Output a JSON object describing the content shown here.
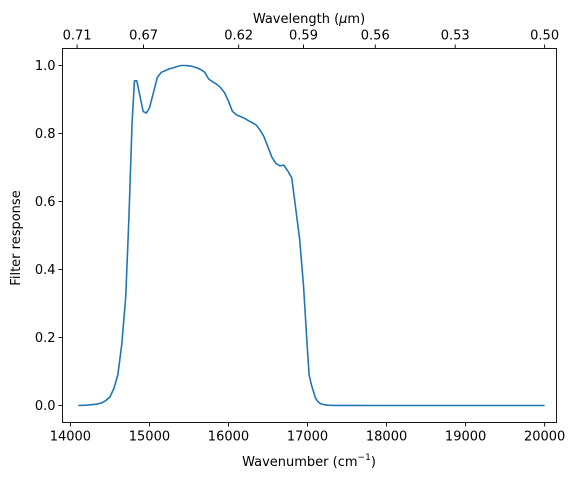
{
  "chart_data": {
    "type": "line",
    "title": "",
    "xlabel": "Wavenumber (cm",
    "xlabel_sup": "−1",
    "xlabel_suffix": ")",
    "ylabel": "Filter response",
    "x2label": "Wavelength (",
    "x2label_mu": "μ",
    "x2label_suffix": "m)",
    "xlim": [
      13900,
      20150
    ],
    "ylim": [
      -0.05,
      1.05
    ],
    "xticks": [
      14000,
      15000,
      16000,
      17000,
      18000,
      19000,
      20000
    ],
    "xtick_labels": [
      "14000",
      "15000",
      "16000",
      "17000",
      "18000",
      "19000",
      "20000"
    ],
    "yticks": [
      0.0,
      0.2,
      0.4,
      0.6,
      0.8,
      1.0
    ],
    "ytick_labels": [
      "0.0",
      "0.2",
      "0.4",
      "0.6",
      "0.8",
      "1.0"
    ],
    "x2ticks_wavelength_um": [
      0.71,
      0.67,
      0.62,
      0.59,
      0.56,
      0.53,
      0.5
    ],
    "x2tick_labels": [
      "0.71",
      "0.67",
      "0.62",
      "0.59",
      "0.56",
      "0.53",
      "0.50"
    ],
    "grid": false,
    "legend": "none",
    "series": [
      {
        "color": "#1f77b4",
        "x": [
          14100,
          14200,
          14300,
          14350,
          14400,
          14450,
          14500,
          14550,
          14600,
          14650,
          14700,
          14740,
          14780,
          14810,
          14840,
          14880,
          14920,
          14960,
          15000,
          15050,
          15100,
          15150,
          15200,
          15250,
          15300,
          15350,
          15400,
          15450,
          15500,
          15550,
          15600,
          15650,
          15700,
          15750,
          15800,
          15850,
          15900,
          15950,
          16000,
          16050,
          16100,
          16150,
          16200,
          16250,
          16300,
          16350,
          16400,
          16450,
          16500,
          16550,
          16600,
          16650,
          16700,
          16750,
          16800,
          16850,
          16900,
          16950,
          16980,
          17000,
          17020,
          17050,
          17080,
          17100,
          17130,
          17160,
          17200,
          17250,
          17300,
          17350,
          17400,
          17500,
          17600,
          17800,
          18000,
          18500,
          19000,
          19500,
          20000
        ],
        "y": [
          0.0,
          0.001,
          0.003,
          0.005,
          0.008,
          0.015,
          0.025,
          0.05,
          0.09,
          0.18,
          0.32,
          0.55,
          0.83,
          0.955,
          0.955,
          0.91,
          0.865,
          0.86,
          0.875,
          0.92,
          0.965,
          0.98,
          0.985,
          0.99,
          0.993,
          0.997,
          1.0,
          1.0,
          0.999,
          0.997,
          0.993,
          0.988,
          0.98,
          0.96,
          0.952,
          0.945,
          0.935,
          0.92,
          0.895,
          0.865,
          0.855,
          0.85,
          0.845,
          0.838,
          0.832,
          0.825,
          0.81,
          0.79,
          0.76,
          0.73,
          0.712,
          0.705,
          0.707,
          0.69,
          0.67,
          0.58,
          0.49,
          0.35,
          0.235,
          0.16,
          0.09,
          0.06,
          0.038,
          0.022,
          0.012,
          0.006,
          0.003,
          0.001,
          0.0005,
          0.0003,
          0.0002,
          0.0001,
          0.0001,
          0.0,
          0.0,
          0.0,
          0.0,
          0.0,
          0.0
        ]
      }
    ]
  }
}
